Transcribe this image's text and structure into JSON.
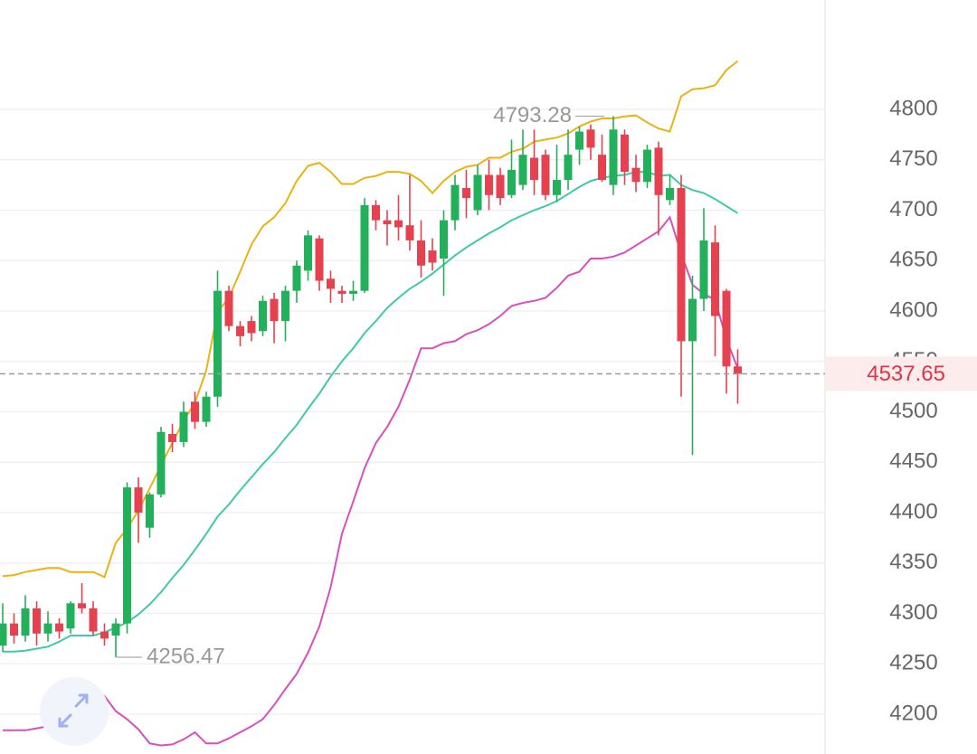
{
  "chart_data": {
    "type": "candlestick",
    "open": [
      4268,
      4290,
      4278,
      4305,
      4280,
      4290,
      4285,
      4310,
      4305,
      4282,
      4278,
      4290,
      4425,
      4385,
      4418,
      4478,
      4470,
      4510,
      4490,
      4515,
      4620,
      4585,
      4590,
      4580,
      4612,
      4590,
      4620,
      4640,
      4672,
      4632,
      4620,
      4617,
      4620,
      4705,
      4690,
      4690,
      4685,
      4670,
      4660,
      4652,
      4690,
      4722,
      4700,
      4735,
      4735,
      4715,
      4725,
      4752,
      4755,
      4715,
      4730,
      4760,
      4780,
      4755,
      4725,
      4775,
      4742,
      4728,
      4762,
      4710,
      4722,
      4570,
      4612,
      4668,
      4620,
      4545
    ],
    "high": [
      4310,
      4300,
      4318,
      4312,
      4302,
      4295,
      4312,
      4330,
      4312,
      4290,
      4295,
      4430,
      4435,
      4420,
      4485,
      4488,
      4510,
      4520,
      4520,
      4640,
      4625,
      4590,
      4595,
      4615,
      4618,
      4625,
      4650,
      4680,
      4675,
      4640,
      4625,
      4630,
      4712,
      4710,
      4700,
      4715,
      4735,
      4690,
      4672,
      4700,
      4735,
      4740,
      4745,
      4750,
      4742,
      4770,
      4780,
      4780,
      4760,
      4765,
      4780,
      4783,
      4785,
      4775,
      4793.28,
      4780,
      4755,
      4765,
      4768,
      4735,
      4735,
      4635,
      4702,
      4685,
      4622,
      4562
    ],
    "low": [
      4262,
      4270,
      4272,
      4268,
      4272,
      4275,
      4280,
      4300,
      4278,
      4268,
      4256.47,
      4280,
      4370,
      4375,
      4415,
      4460,
      4465,
      4483,
      4485,
      4505,
      4580,
      4565,
      4570,
      4575,
      4568,
      4570,
      4608,
      4630,
      4620,
      4608,
      4608,
      4610,
      4618,
      4680,
      4665,
      4670,
      4660,
      4633,
      4640,
      4615,
      4680,
      4692,
      4695,
      4700,
      4705,
      4712,
      4720,
      4715,
      4710,
      4708,
      4720,
      4745,
      4750,
      4728,
      4715,
      4725,
      4718,
      4722,
      4675,
      4705,
      4515,
      4457,
      4600,
      4555,
      4518,
      4508
    ],
    "close": [
      4290,
      4278,
      4305,
      4280,
      4290,
      4282,
      4310,
      4305,
      4282,
      4275,
      4290,
      4425,
      4400,
      4418,
      4480,
      4470,
      4500,
      4490,
      4515,
      4620,
      4585,
      4575,
      4578,
      4610,
      4590,
      4620,
      4645,
      4675,
      4630,
      4622,
      4617,
      4620,
      4705,
      4690,
      4686,
      4683,
      4670,
      4645,
      4648,
      4690,
      4725,
      4712,
      4735,
      4715,
      4712,
      4740,
      4755,
      4730,
      4715,
      4730,
      4755,
      4778,
      4762,
      4730,
      4780,
      4738,
      4728,
      4760,
      4715,
      4722,
      4570,
      4612,
      4670,
      4595,
      4545,
      4537.65
    ],
    "up_color": "#22b05b",
    "down_color": "#e5414f",
    "bands": [
      {
        "color": "#e9b312",
        "values": [
          4337,
          4338,
          4341,
          4343,
          4345,
          4345,
          4341,
          4341,
          4341,
          4336,
          4370,
          4384,
          4402,
          4424,
          4447,
          4469,
          4491,
          4509,
          4541,
          4599,
          4613,
          4639,
          4666,
          4684,
          4693,
          4707,
          4729,
          4744,
          4747,
          4738,
          4726,
          4726,
          4732,
          4734,
          4738,
          4738,
          4736,
          4729,
          4717,
          4729,
          4738,
          4743,
          4745,
          4752,
          4752,
          4758,
          4761,
          4768,
          4770,
          4772,
          4776,
          4783,
          4788,
          4791,
          4791,
          4793,
          4794,
          4787,
          4781,
          4778,
          4813,
          4820,
          4821,
          4824,
          4839,
          4848
        ]
      },
      {
        "color": "#3fcaa6",
        "values": [
          4262,
          4262,
          4263,
          4265,
          4267,
          4272,
          4278,
          4278,
          4278,
          4281,
          4286,
          4291,
          4299,
          4309,
          4321,
          4335,
          4348,
          4363,
          4379,
          4396,
          4408,
          4422,
          4435,
          4448,
          4460,
          4474,
          4487,
          4503,
          4518,
          4535,
          4550,
          4563,
          4578,
          4590,
          4603,
          4613,
          4622,
          4629,
          4637,
          4646,
          4655,
          4663,
          4670,
          4677,
          4683,
          4690,
          4695,
          4700,
          4704,
          4709,
          4716,
          4723,
          4729,
          4732,
          4734,
          4735,
          4738,
          4738,
          4734,
          4735,
          4725,
          4720,
          4717,
          4711,
          4704,
          4697
        ]
      },
      {
        "color": "#d84fbf",
        "values": [
          4184,
          4184,
          4184,
          4186,
          4188,
          4200,
          4217,
          4218,
          4216,
          4218,
          4203,
          4195,
          4185,
          4171,
          4169,
          4170,
          4175,
          4182,
          4171,
          4171,
          4176,
          4182,
          4188,
          4195,
          4209,
          4225,
          4240,
          4261,
          4287,
          4326,
          4379,
          4411,
          4444,
          4469,
          4485,
          4505,
          4532,
          4563,
          4563,
          4568,
          4570,
          4577,
          4581,
          4587,
          4595,
          4605,
          4608,
          4610,
          4613,
          4623,
          4635,
          4639,
          4652,
          4652,
          4654,
          4658,
          4665,
          4672,
          4679,
          4693,
          4657,
          4626,
          4617,
          4611,
          4572,
          4543
        ]
      }
    ],
    "ylim": [
      4160.5,
      4908.5
    ],
    "yticks": [
      4200,
      4250,
      4300,
      4350,
      4400,
      4450,
      4500,
      4550,
      4600,
      4650,
      4700,
      4750,
      4800
    ],
    "grid": true
  }
}
